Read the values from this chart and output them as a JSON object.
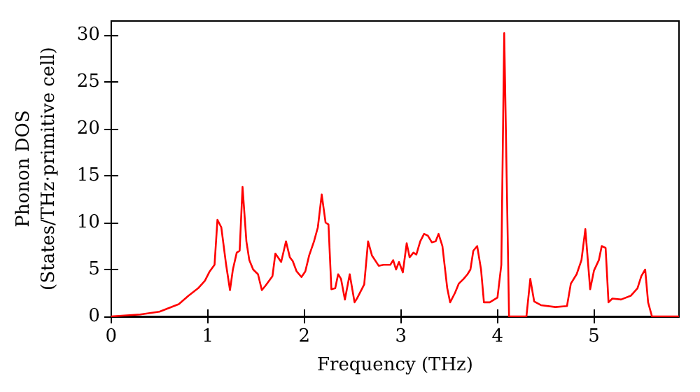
{
  "chart_data": {
    "type": "line",
    "xlabel": "Frequency (THz)",
    "ylabel": "Phonon DOS\n(States/THz·primitive cell)",
    "x": [
      0,
      0.3,
      0.5,
      0.7,
      0.8,
      0.9,
      0.97,
      1.02,
      1.07,
      1.1,
      1.14,
      1.19,
      1.23,
      1.26,
      1.3,
      1.33,
      1.36,
      1.4,
      1.43,
      1.47,
      1.52,
      1.56,
      1.6,
      1.67,
      1.7,
      1.76,
      1.81,
      1.85,
      1.88,
      1.92,
      1.97,
      2.01,
      2.05,
      2.1,
      2.14,
      2.18,
      2.22,
      2.25,
      2.28,
      2.32,
      2.35,
      2.38,
      2.42,
      2.47,
      2.52,
      2.55,
      2.62,
      2.66,
      2.7,
      2.77,
      2.82,
      2.89,
      2.92,
      2.95,
      2.98,
      3.02,
      3.06,
      3.09,
      3.13,
      3.16,
      3.2,
      3.24,
      3.28,
      3.32,
      3.36,
      3.39,
      3.43,
      3.48,
      3.51,
      3.56,
      3.6,
      3.65,
      3.69,
      3.72,
      3.75,
      3.79,
      3.83,
      3.86,
      3.92,
      4.0,
      4.04,
      4.07,
      4.12,
      4.3,
      4.34,
      4.38,
      4.45,
      4.6,
      4.72,
      4.76,
      4.82,
      4.87,
      4.91,
      4.96,
      5.0,
      5.05,
      5.08,
      5.12,
      5.15,
      5.19,
      5.28,
      5.38,
      5.45,
      5.49,
      5.53,
      5.56,
      5.6,
      5.88
    ],
    "series": [
      {
        "color": "#ff0000",
        "values": [
          0,
          0.2,
          0.5,
          1.3,
          2.2,
          3,
          3.8,
          4.8,
          5.5,
          10.3,
          9.5,
          5.5,
          2.8,
          5,
          6.8,
          7,
          13.8,
          8,
          6,
          5,
          4.5,
          2.8,
          3.3,
          4.3,
          6.7,
          5.8,
          8,
          6.3,
          5.9,
          4.8,
          4.2,
          4.8,
          6.5,
          8,
          9.5,
          13,
          10,
          9.8,
          2.9,
          3,
          4.5,
          4,
          1.8,
          4.5,
          1.5,
          2,
          3.4,
          8,
          6.5,
          5.4,
          5.5,
          5.5,
          6,
          5,
          5.8,
          4.7,
          7.8,
          6.3,
          6.8,
          6.6,
          8,
          8.8,
          8.6,
          7.9,
          8,
          8.8,
          7.5,
          3,
          1.5,
          2.5,
          3.5,
          4,
          4.5,
          5,
          7,
          7.5,
          5,
          1.5,
          1.5,
          2,
          5.5,
          30.2,
          0,
          0,
          4,
          1.6,
          1.2,
          1,
          1.1,
          3.5,
          4.5,
          6,
          9.3,
          2.9,
          4.9,
          6,
          7.5,
          7.3,
          1.5,
          1.9,
          1.8,
          2.2,
          3,
          4.3,
          5,
          1.5,
          0,
          0
        ]
      }
    ],
    "xlim": [
      0,
      5.88
    ],
    "ylim": [
      0,
      31.5
    ],
    "xticks": [
      0,
      1,
      2,
      3,
      4,
      5
    ],
    "yticks": [
      0,
      5,
      10,
      15,
      20,
      25,
      30
    ],
    "grid": false,
    "marker": "none",
    "line_style": "solid"
  }
}
